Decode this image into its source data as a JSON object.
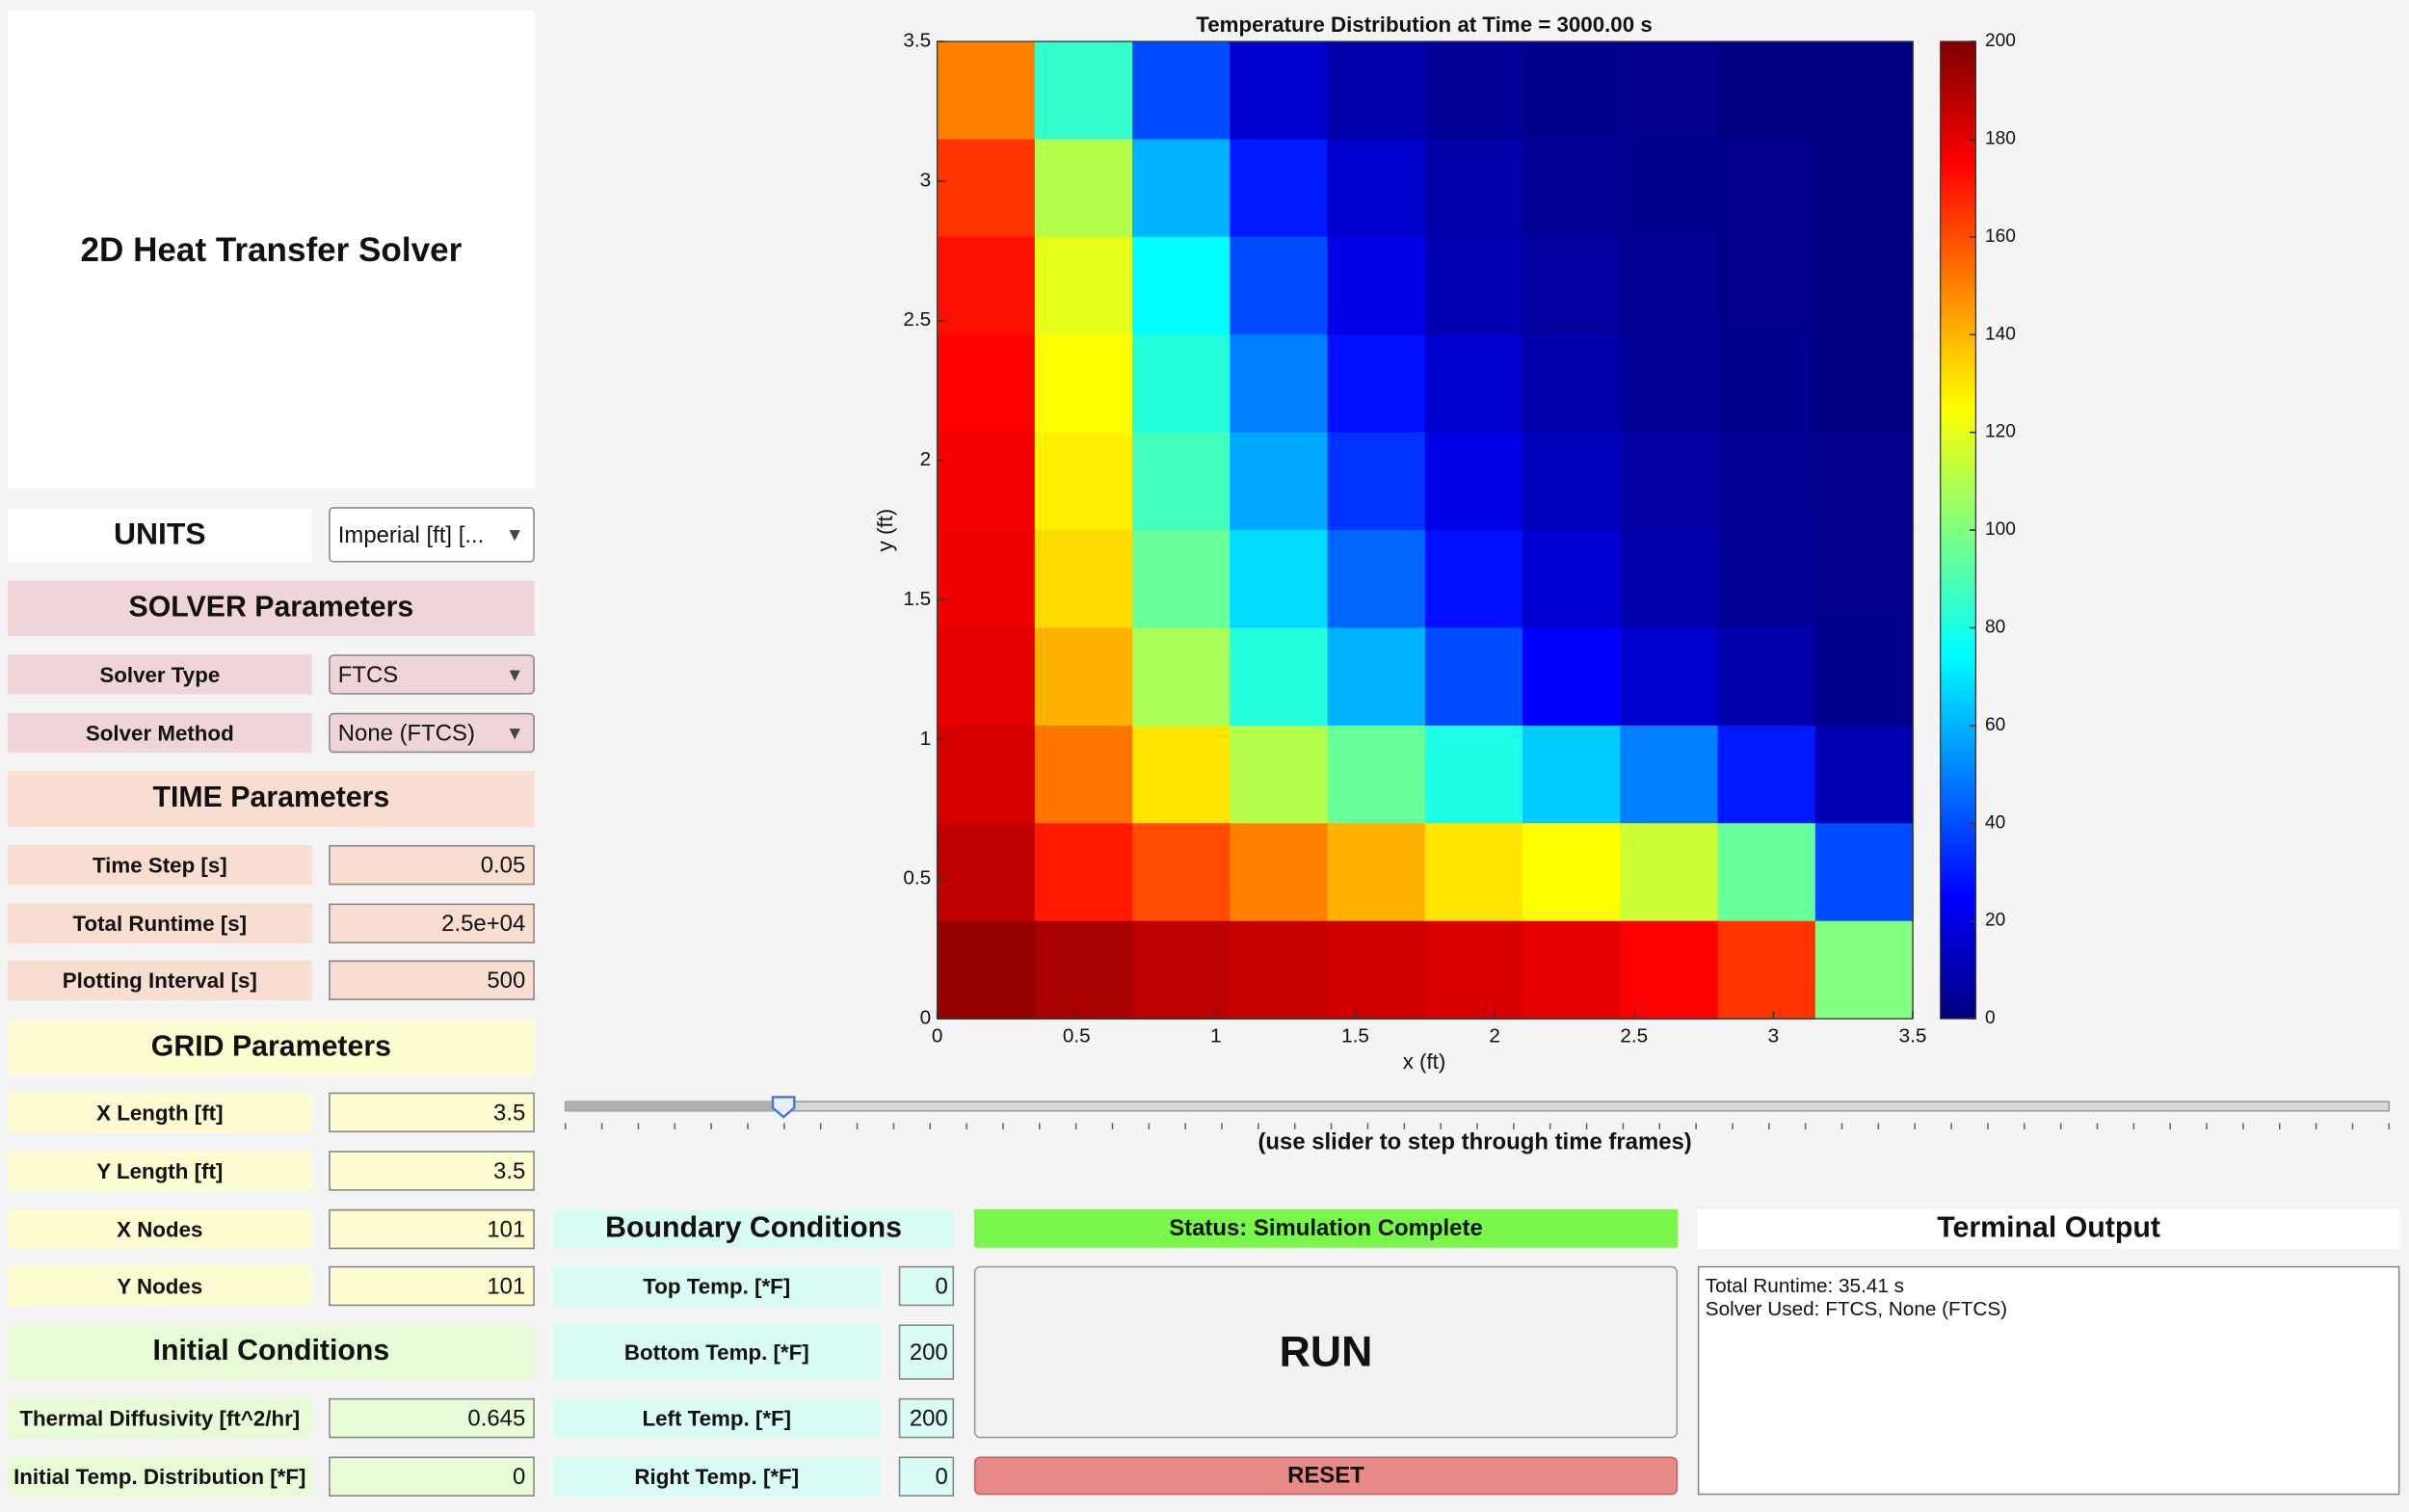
{
  "title": "2D Heat Transfer Solver",
  "units": {
    "label": "UNITS",
    "value": "Imperial [ft] [..."
  },
  "solver": {
    "header": "SOLVER Parameters",
    "fields": [
      {
        "label": "Solver Type",
        "value": "FTCS"
      },
      {
        "label": "Solver Method",
        "value": "None (FTCS)"
      }
    ]
  },
  "time": {
    "header": "TIME Parameters",
    "fields": [
      {
        "label": "Time Step [s]",
        "value": "0.05"
      },
      {
        "label": "Total Runtime [s]",
        "value": "2.5e+04"
      },
      {
        "label": "Plotting Interval [s]",
        "value": "500"
      }
    ]
  },
  "grid": {
    "header": "GRID Parameters",
    "fields": [
      {
        "label": "X Length [ft]",
        "value": "3.5"
      },
      {
        "label": "Y Length [ft]",
        "value": "3.5"
      },
      {
        "label": "X Nodes",
        "value": "101"
      },
      {
        "label": "Y Nodes",
        "value": "101"
      }
    ]
  },
  "initial": {
    "header": "Initial Conditions",
    "fields": [
      {
        "label": "Thermal Diffusivity [ft^2/hr]",
        "value": "0.645"
      },
      {
        "label": "Initial Temp. Distribution [*F]",
        "value": "0"
      }
    ]
  },
  "boundary": {
    "header": "Boundary Conditions",
    "fields": [
      {
        "label": "Top Temp. [*F]",
        "value": "0"
      },
      {
        "label": "Bottom Temp. [*F]",
        "value": "200"
      },
      {
        "label": "Left Temp. [*F]",
        "value": "200"
      },
      {
        "label": "Right Temp. [*F]",
        "value": "0"
      }
    ]
  },
  "status": "Status: Simulation Complete",
  "run": "RUN",
  "reset": "RESET",
  "terminal": {
    "header": "Terminal Output",
    "lines": [
      "Total Runtime: 35.41 s",
      "Solver Used: FTCS, None (FTCS)"
    ]
  },
  "slider_caption": "(use slider to step through time frames)",
  "chart_data": {
    "type": "heatmap",
    "title": "Temperature Distribution at Time = 3000.00 s",
    "x_label": "x (ft)",
    "y_label": "y (ft)",
    "xlim": [
      0,
      3.5
    ],
    "ylim": [
      0,
      3.5
    ],
    "xticks": [
      0,
      0.5,
      1,
      1.5,
      2,
      2.5,
      3,
      3.5
    ],
    "yticks": [
      0,
      0.5,
      1,
      1.5,
      2,
      2.5,
      3,
      3.5
    ],
    "colormap": "jet",
    "clim": [
      0,
      200
    ],
    "cticks": [
      0,
      20,
      40,
      60,
      80,
      100,
      120,
      140,
      160,
      180,
      200
    ],
    "x": [
      0.175,
      0.525,
      0.875,
      1.225,
      1.575,
      1.925,
      2.275,
      2.625,
      2.975,
      3.325
    ],
    "y": [
      3.325,
      2.975,
      2.625,
      2.275,
      1.925,
      1.575,
      1.225,
      0.875,
      0.525,
      0.175
    ],
    "values": [
      [
        150,
        85,
        40,
        15,
        8,
        5,
        3,
        2,
        1,
        1
      ],
      [
        165,
        110,
        60,
        30,
        15,
        8,
        5,
        3,
        2,
        1
      ],
      [
        172,
        120,
        75,
        40,
        20,
        10,
        6,
        4,
        2,
        1
      ],
      [
        175,
        125,
        82,
        50,
        28,
        15,
        9,
        5,
        3,
        1
      ],
      [
        177,
        128,
        88,
        58,
        35,
        20,
        12,
        7,
        4,
        2
      ],
      [
        178,
        132,
        95,
        68,
        45,
        28,
        16,
        9,
        5,
        2
      ],
      [
        180,
        140,
        108,
        82,
        60,
        40,
        25,
        15,
        8,
        3
      ],
      [
        183,
        152,
        130,
        110,
        95,
        80,
        65,
        50,
        30,
        10
      ],
      [
        188,
        170,
        160,
        150,
        140,
        130,
        125,
        115,
        95,
        40
      ],
      [
        196,
        192,
        188,
        186,
        184,
        182,
        180,
        176,
        165,
        100
      ]
    ]
  }
}
